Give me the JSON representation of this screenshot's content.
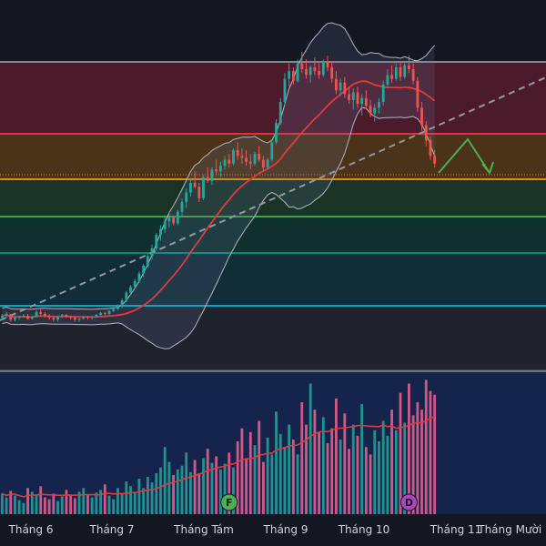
{
  "chart_data": {
    "type": "candlestick",
    "x_axis": {
      "labels": [
        "Tháng 6",
        "Tháng 7",
        "Tháng Tám",
        "Tháng 9",
        "Tháng 10",
        "Tháng 11",
        "Tháng Mười Hai"
      ]
    },
    "price": {
      "candles": [
        [
          98,
          100,
          97,
          99
        ],
        [
          99,
          101,
          98,
          100
        ],
        [
          100,
          100,
          96,
          97
        ],
        [
          97,
          99,
          96,
          98
        ],
        [
          98,
          99,
          97,
          98.5
        ],
        [
          98.5,
          100,
          98,
          99
        ],
        [
          99,
          100,
          97,
          97.5
        ],
        [
          97.5,
          99,
          97,
          98.5
        ],
        [
          98.5,
          102,
          98,
          101
        ],
        [
          101,
          103,
          99,
          100
        ],
        [
          100,
          101,
          98,
          99
        ],
        [
          99,
          100,
          97,
          98
        ],
        [
          98,
          99,
          96,
          97
        ],
        [
          97,
          99,
          96,
          98.5
        ],
        [
          98.5,
          100,
          98,
          99.5
        ],
        [
          99.5,
          100,
          98,
          98.5
        ],
        [
          98.5,
          99,
          97,
          98
        ],
        [
          98,
          99,
          96,
          97
        ],
        [
          97,
          98,
          96,
          97.5
        ],
        [
          97.5,
          99,
          97,
          98.5
        ],
        [
          98.5,
          99,
          97,
          98
        ],
        [
          98,
          99,
          97,
          98.5
        ],
        [
          98.5,
          100,
          98,
          99.5
        ],
        [
          99.5,
          101,
          99,
          100.5
        ],
        [
          100.5,
          101,
          99,
          100
        ],
        [
          100,
          102,
          99,
          101.5
        ],
        [
          101.5,
          103,
          101,
          102.5
        ],
        [
          102.5,
          105,
          102,
          104
        ],
        [
          104,
          108,
          103,
          107
        ],
        [
          107,
          112,
          106,
          111
        ],
        [
          111,
          115,
          110,
          114
        ],
        [
          114,
          118,
          113,
          117
        ],
        [
          117,
          122,
          116,
          121
        ],
        [
          121,
          126,
          119,
          125
        ],
        [
          125,
          131,
          124,
          130
        ],
        [
          130,
          136,
          128,
          134
        ],
        [
          134,
          142,
          133,
          141
        ],
        [
          141,
          146,
          138,
          144
        ],
        [
          144,
          150,
          142,
          148
        ],
        [
          148,
          153,
          145,
          150
        ],
        [
          150,
          151,
          146,
          147
        ],
        [
          147,
          154,
          146,
          153
        ],
        [
          153,
          160,
          151,
          158
        ],
        [
          158,
          165,
          155,
          163
        ],
        [
          163,
          170,
          161,
          168
        ],
        [
          168,
          174,
          165,
          166
        ],
        [
          166,
          168,
          158,
          160
        ],
        [
          160,
          172,
          159,
          171
        ],
        [
          171,
          176,
          168,
          169
        ],
        [
          169,
          176,
          167,
          175
        ],
        [
          175,
          180,
          172,
          174
        ],
        [
          174,
          179,
          171,
          177
        ],
        [
          177,
          182,
          175,
          180
        ],
        [
          180,
          183,
          176,
          178
        ],
        [
          178,
          186,
          177,
          185
        ],
        [
          185,
          189,
          180,
          182
        ],
        [
          182,
          186,
          178,
          181
        ],
        [
          181,
          185,
          177,
          179
        ],
        [
          179,
          183,
          175,
          178
        ],
        [
          178,
          184,
          177,
          183
        ],
        [
          183,
          187,
          179,
          180
        ],
        [
          180,
          182,
          174,
          176
        ],
        [
          176,
          181,
          175,
          180
        ],
        [
          180,
          190,
          179,
          189
        ],
        [
          189,
          201,
          188,
          199
        ],
        [
          199,
          212,
          198,
          210
        ],
        [
          210,
          225,
          208,
          222
        ],
        [
          222,
          230,
          218,
          226
        ],
        [
          226,
          228,
          219,
          221
        ],
        [
          221,
          232,
          220,
          230
        ],
        [
          230,
          236,
          225,
          227
        ],
        [
          227,
          232,
          222,
          224
        ],
        [
          224,
          229,
          220,
          228
        ],
        [
          228,
          233,
          224,
          226
        ],
        [
          226,
          230,
          222,
          224
        ],
        [
          224,
          232,
          223,
          231
        ],
        [
          231,
          234,
          226,
          228
        ],
        [
          228,
          231,
          220,
          222
        ],
        [
          222,
          226,
          214,
          216
        ],
        [
          216,
          222,
          213,
          220
        ],
        [
          220,
          223,
          212,
          214
        ],
        [
          214,
          218,
          209,
          211
        ],
        [
          211,
          217,
          206,
          215
        ],
        [
          215,
          218,
          207,
          209
        ],
        [
          209,
          214,
          203,
          212
        ],
        [
          212,
          216,
          206,
          208
        ],
        [
          208,
          211,
          202,
          204
        ],
        [
          204,
          209,
          200,
          207
        ],
        [
          207,
          212,
          204,
          210
        ],
        [
          210,
          221,
          208,
          219
        ],
        [
          219,
          227,
          217,
          224
        ],
        [
          224,
          229,
          220,
          222
        ],
        [
          222,
          230,
          221,
          228
        ],
        [
          228,
          231,
          221,
          223
        ],
        [
          223,
          230,
          222,
          229
        ],
        [
          229,
          234,
          225,
          227
        ],
        [
          227,
          230,
          219,
          221
        ],
        [
          221,
          223,
          205,
          207
        ],
        [
          207,
          210,
          195,
          198
        ],
        [
          198,
          200,
          187,
          190
        ],
        [
          190,
          192,
          180,
          182
        ],
        [
          182,
          185,
          176,
          178
        ]
      ],
      "fib_levels": [
        "0",
        "0.236",
        "0.382",
        "0.5",
        "0.618",
        "0.786",
        "1"
      ],
      "colors": {
        "up": "#26a69a",
        "down": "#ef5350",
        "ma": "#e03a3e",
        "band": "#b2b5be",
        "trend": "#9598a1",
        "arrow": "#4caf50"
      }
    },
    "volume": {
      "values": [
        22,
        18,
        25,
        20,
        15,
        12,
        28,
        24,
        20,
        30,
        18,
        16,
        22,
        14,
        19,
        26,
        20,
        17,
        24,
        28,
        21,
        18,
        23,
        26,
        32,
        20,
        16,
        28,
        22,
        35,
        30,
        24,
        38,
        28,
        40,
        34,
        44,
        50,
        72,
        56,
        42,
        48,
        52,
        66,
        45,
        58,
        44,
        60,
        70,
        55,
        62,
        48,
        54,
        66,
        50,
        78,
        92,
        60,
        88,
        74,
        100,
        56,
        82,
        64,
        110,
        86,
        72,
        96,
        80,
        64,
        120,
        96,
        140,
        112,
        88,
        104,
        76,
        92,
        124,
        80,
        108,
        70,
        96,
        84,
        118,
        72,
        64,
        90,
        78,
        100,
        84,
        112,
        90,
        130,
        98,
        140,
        106,
        120,
        112,
        144,
        132,
        128
      ],
      "colors": {
        "up": "#26a69a",
        "down": "#f06292",
        "ma": "#e03a3e"
      }
    },
    "markers": [
      {
        "label": "F",
        "bar": 53,
        "color": "#4caf50"
      },
      {
        "label": "D",
        "bar": 95,
        "color": "#ab47bc"
      }
    ]
  }
}
